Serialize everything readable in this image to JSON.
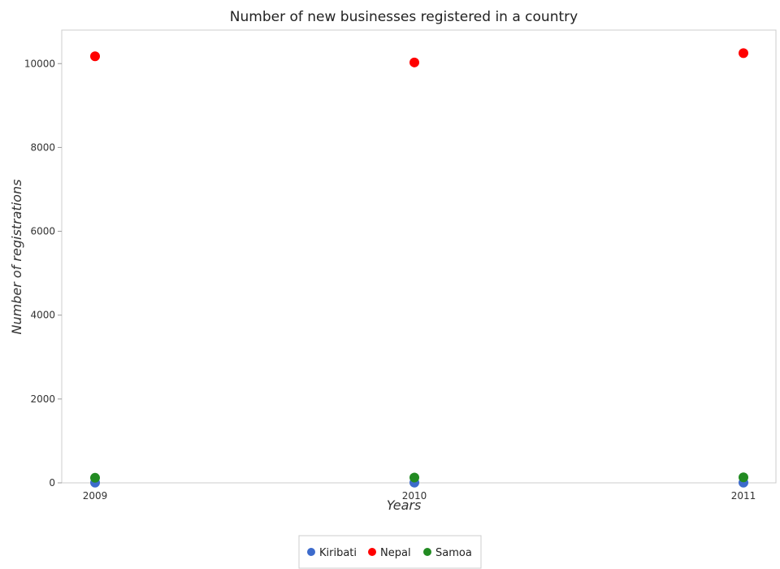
{
  "chart_data": {
    "type": "scatter",
    "title": "Number of new businesses registered in a country",
    "xlabel": "Years",
    "ylabel": "Number of registrations",
    "categories": [
      "2009",
      "2010",
      "2011"
    ],
    "ylim": [
      0,
      10800
    ],
    "yticks": [
      0,
      2000,
      4000,
      6000,
      8000,
      10000
    ],
    "grid": false,
    "legend_position": "bottom-center",
    "series": [
      {
        "name": "Kiribati",
        "color": "#3d6bcc",
        "values": [
          5,
          5,
          5
        ]
      },
      {
        "name": "Nepal",
        "color": "#ff0000",
        "values": [
          10175,
          10028,
          10250
        ]
      },
      {
        "name": "Samoa",
        "color": "#228b22",
        "values": [
          120,
          125,
          130
        ]
      }
    ]
  }
}
